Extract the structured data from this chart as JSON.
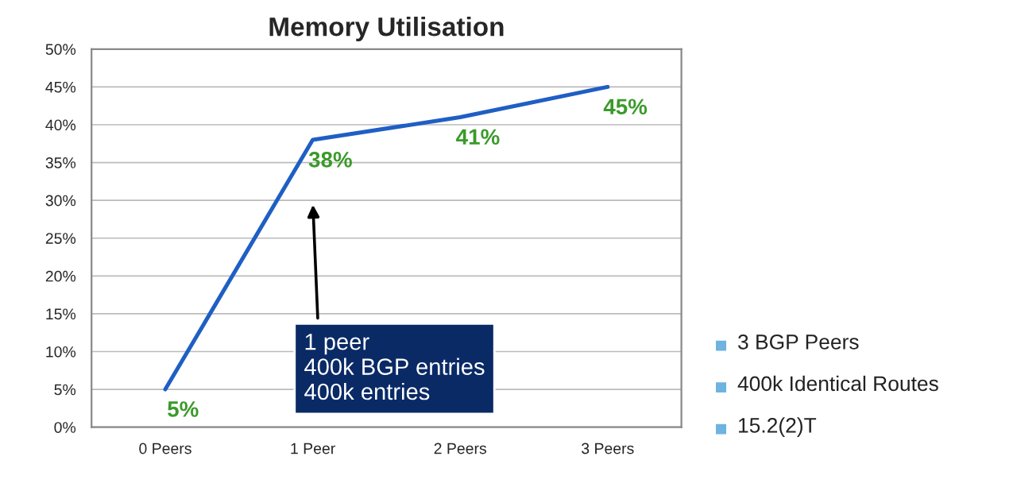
{
  "chart_data": {
    "type": "line",
    "title": "Memory Utilisation",
    "categories": [
      "0 Peers",
      "1 Peer",
      "2 Peers",
      "3 Peers"
    ],
    "series": [
      {
        "color": "#1f5fc4",
        "values": [
          5,
          38,
          41,
          45
        ],
        "value_labels": [
          "5%",
          "38%",
          "41%",
          "45%"
        ]
      }
    ],
    "ylim": [
      0,
      50
    ],
    "yticks": [
      {
        "value": 0,
        "label": "0%"
      },
      {
        "value": 5,
        "label": "5%"
      },
      {
        "value": 10,
        "label": "10%"
      },
      {
        "value": 15,
        "label": "15%"
      },
      {
        "value": 20,
        "label": "20%"
      },
      {
        "value": 25,
        "label": "25%"
      },
      {
        "value": 30,
        "label": "30%"
      },
      {
        "value": 35,
        "label": "35%"
      },
      {
        "value": 40,
        "label": "40%"
      },
      {
        "value": 45,
        "label": "45%"
      },
      {
        "value": 50,
        "label": "50%"
      }
    ],
    "grid": "y",
    "marker": "none",
    "line_style": "solid",
    "annotations": [
      "1 peer\n400k BGP entries\n400k entries",
      "3 BGP Peers",
      "400k Identical Routes",
      "15.2(2)T"
    ]
  }
}
